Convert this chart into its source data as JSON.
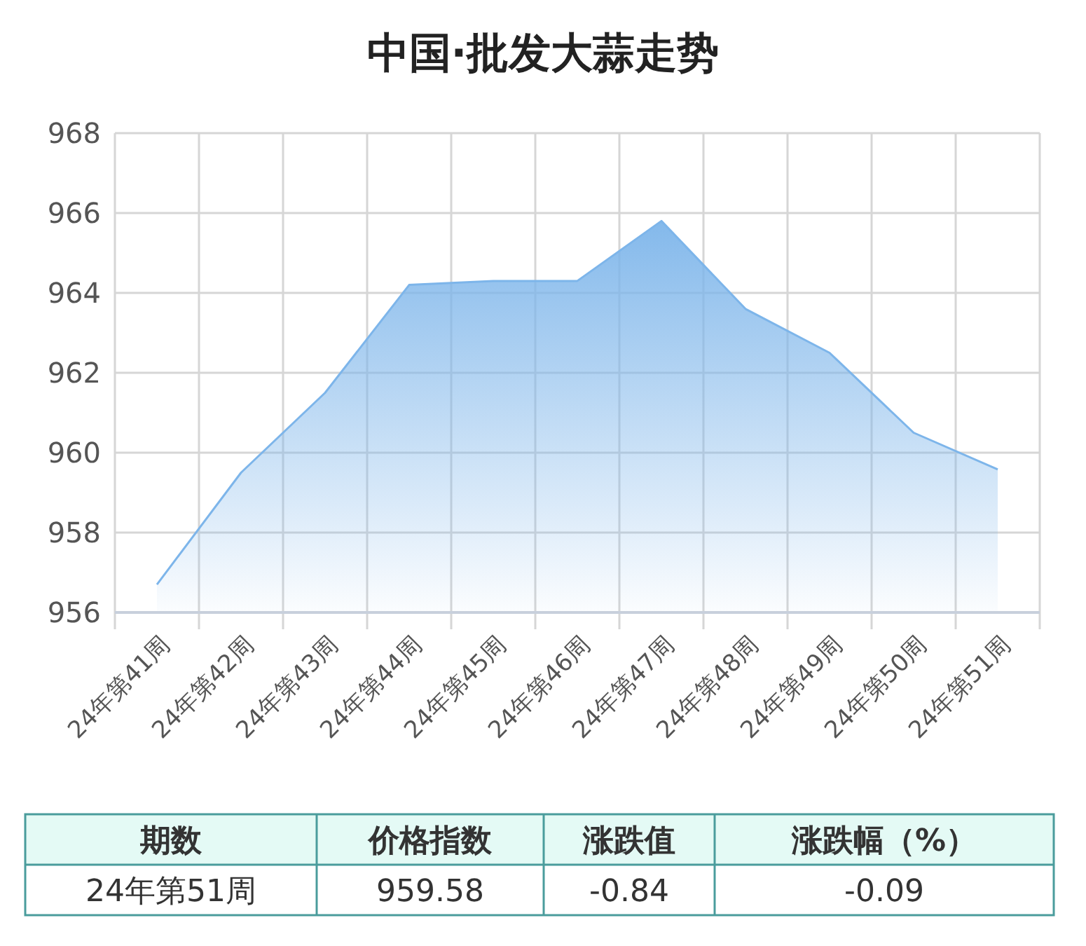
{
  "chart_data": {
    "type": "area",
    "title": "中国·批发大蒜走势",
    "categories": [
      "24年第41周",
      "24年第42周",
      "24年第43周",
      "24年第44周",
      "24年第45周",
      "24年第46周",
      "24年第47周",
      "24年第48周",
      "24年第49周",
      "24年第50周",
      "24年第51周"
    ],
    "series": [
      {
        "color": "#7db5ea",
        "values": [
          956.7,
          959.5,
          961.5,
          964.2,
          964.3,
          964.3,
          965.8,
          963.6,
          962.5,
          960.5,
          959.58
        ]
      }
    ],
    "ylim": [
      956,
      968
    ],
    "yticks": [
      956,
      958,
      960,
      962,
      964,
      966,
      968
    ],
    "grid": true,
    "annotations": [
      "期数",
      "价格指数",
      "涨跌值",
      "涨跌幅（%）",
      "24年第51周",
      "959.58",
      "-0.84",
      "-0.09"
    ]
  }
}
